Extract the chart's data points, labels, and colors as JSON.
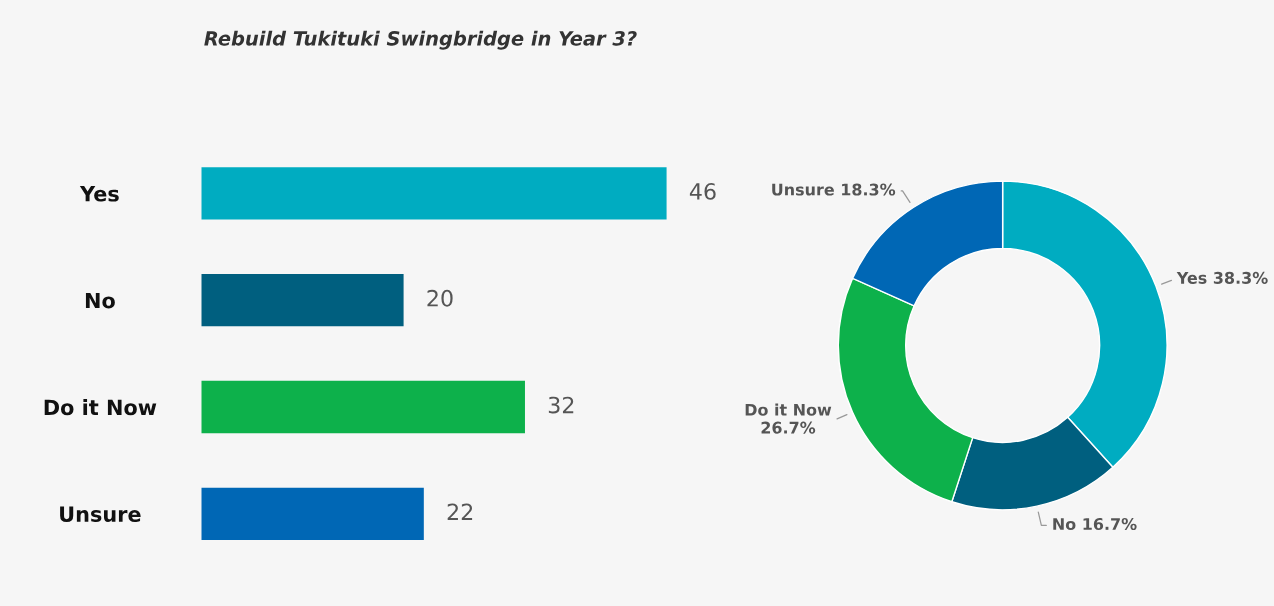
{
  "chart_data": [
    {
      "type": "bar",
      "orientation": "horizontal",
      "title": "Rebuild Tukituki Swingbridge in Year 3?",
      "categories": [
        "Yes",
        "No",
        "Do it Now",
        "Unsure"
      ],
      "values": [
        46,
        20,
        32,
        22
      ],
      "colors": [
        "#00acc1",
        "#005f7f",
        "#0db14b",
        "#0067b5"
      ],
      "data_labels": true,
      "grid": false,
      "legend": false
    },
    {
      "type": "donut",
      "categories": [
        "Yes",
        "No",
        "Do it Now",
        "Unsure"
      ],
      "values": [
        38.3,
        16.7,
        26.7,
        18.3
      ],
      "value_labels": [
        "38.3%",
        "16.7%",
        "26.7%",
        "18.3%"
      ],
      "colors": [
        "#00acc1",
        "#005f7f",
        "#0db14b",
        "#0067b5"
      ],
      "legend": false
    }
  ]
}
